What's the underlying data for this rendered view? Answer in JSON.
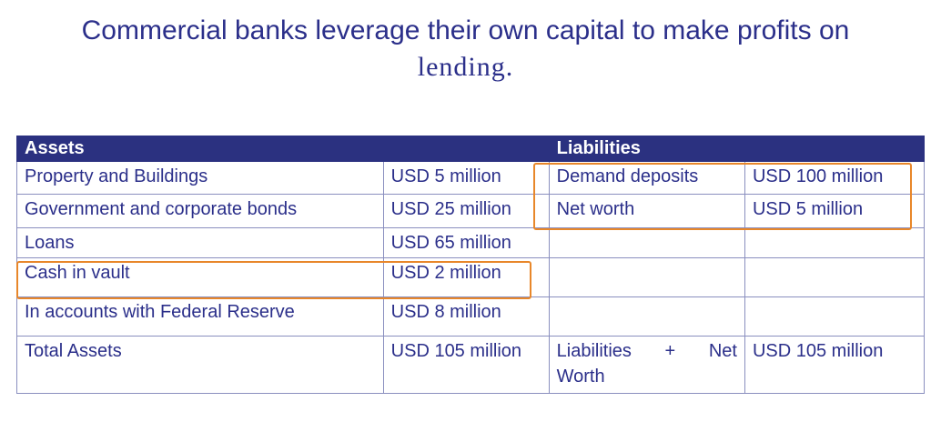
{
  "title": {
    "line1": "Commercial banks leverage their own capital to make profits on",
    "line2": "lending."
  },
  "table": {
    "headers": {
      "assets": "Assets",
      "liabilities": "Liabilities"
    },
    "rows": [
      {
        "asset": "Property and Buildings",
        "asset_value": "USD 5 million",
        "liability": "Demand deposits",
        "liability_value": "USD 100 million"
      },
      {
        "asset": "Government and corporate bonds",
        "asset_value": "USD 25 million",
        "liability": "Net worth",
        "liability_value": "USD 5 million"
      },
      {
        "asset": "Loans",
        "asset_value": "USD 65 million",
        "liability": "",
        "liability_value": ""
      },
      {
        "asset": "Cash in vault",
        "asset_value": "USD 2 million",
        "liability": "",
        "liability_value": ""
      },
      {
        "asset": "In accounts with Federal Reserve",
        "asset_value": "USD 8 million",
        "liability": "",
        "liability_value": ""
      },
      {
        "asset": "Total Assets",
        "asset_value": "USD 105 million",
        "liability": "",
        "liability_value": "USD 105 million"
      }
    ],
    "total_liability_label": {
      "part1": "Liabilities",
      "part2": "+",
      "part3": "Net",
      "part4": "Worth"
    }
  },
  "colors": {
    "text": "#2b2f8a",
    "header_bg": "#2b3180",
    "highlight": "#e8872a"
  }
}
